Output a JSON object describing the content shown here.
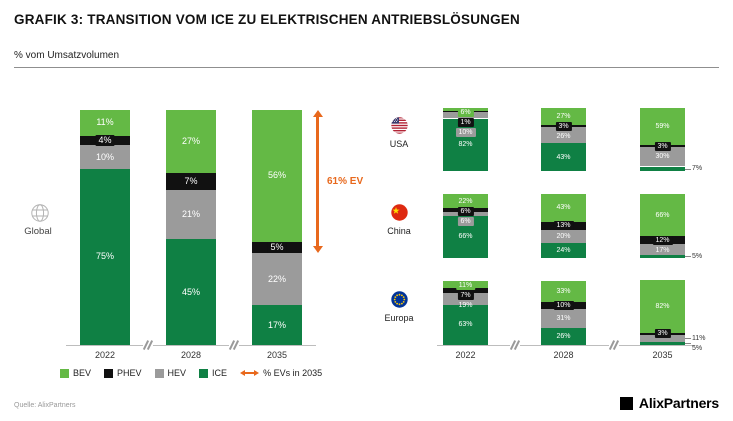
{
  "header": {
    "title": "GRAFIK 3: TRANSITION VOM ICE ZU ELEKTRISCHEN ANTRIEBSLÖSUNGEN",
    "subtitle": "% vom Umsatzvolumen"
  },
  "colors": {
    "BEV": "#64b945",
    "PHEV": "#111111",
    "HEV": "#9b9b9b",
    "ICE": "#0f8044",
    "accent_orange": "#e8681c"
  },
  "chart_data": {
    "type": "bar",
    "stacked": true,
    "unit": "%",
    "value_axis_max": 100,
    "segment_order": [
      "BEV",
      "PHEV",
      "HEV",
      "ICE"
    ],
    "years": [
      "2022",
      "2028",
      "2035"
    ],
    "global": {
      "label": "Global",
      "icon": "globe",
      "bars": [
        {
          "year": "2022",
          "BEV": 11,
          "PHEV": 4,
          "HEV": 10,
          "ICE": 75
        },
        {
          "year": "2028",
          "BEV": 27,
          "PHEV": 7,
          "HEV": 21,
          "ICE": 45
        },
        {
          "year": "2035",
          "BEV": 56,
          "PHEV": 5,
          "HEV": 22,
          "ICE": 17
        }
      ],
      "annotation": {
        "label": "61% EV",
        "value": 61,
        "year": "2035",
        "spans": [
          "BEV",
          "PHEV"
        ]
      }
    },
    "regions": [
      {
        "label": "USA",
        "icon": "usa-flag",
        "bars": [
          {
            "year": "2022",
            "BEV": 6,
            "PHEV": 1,
            "HEV": 10,
            "ICE": 82
          },
          {
            "year": "2028",
            "BEV": 27,
            "PHEV": 3,
            "HEV": 26,
            "ICE": 43
          },
          {
            "year": "2035",
            "BEV": 59,
            "PHEV": 3,
            "HEV": 30,
            "ICE": 7
          }
        ]
      },
      {
        "label": "China",
        "icon": "china-flag",
        "bars": [
          {
            "year": "2022",
            "BEV": 22,
            "PHEV": 6,
            "HEV": 6,
            "ICE": 66
          },
          {
            "year": "2028",
            "BEV": 43,
            "PHEV": 13,
            "HEV": 20,
            "ICE": 24
          },
          {
            "year": "2035",
            "BEV": 66,
            "PHEV": 12,
            "HEV": 17,
            "ICE": 5
          }
        ]
      },
      {
        "label": "Europa",
        "icon": "eu-flag",
        "bars": [
          {
            "year": "2022",
            "BEV": 11,
            "PHEV": 7,
            "HEV": 19,
            "ICE": 63
          },
          {
            "year": "2028",
            "BEV": 33,
            "PHEV": 10,
            "HEV": 31,
            "ICE": 26
          },
          {
            "year": "2035",
            "BEV": 82,
            "PHEV": 3,
            "HEV": 11,
            "ICE": 5
          }
        ]
      }
    ]
  },
  "legend": {
    "items": [
      {
        "label": "BEV",
        "color": "#64b945"
      },
      {
        "label": "PHEV",
        "color": "#111111"
      },
      {
        "label": "HEV",
        "color": "#9b9b9b"
      },
      {
        "label": "ICE",
        "color": "#0f8044"
      }
    ],
    "arrow_item": {
      "label": "% EVs in 2035",
      "color": "#e8681c"
    }
  },
  "footer": {
    "source": "Quelle: AlixPartners",
    "logo_text": "AlixPartners"
  }
}
